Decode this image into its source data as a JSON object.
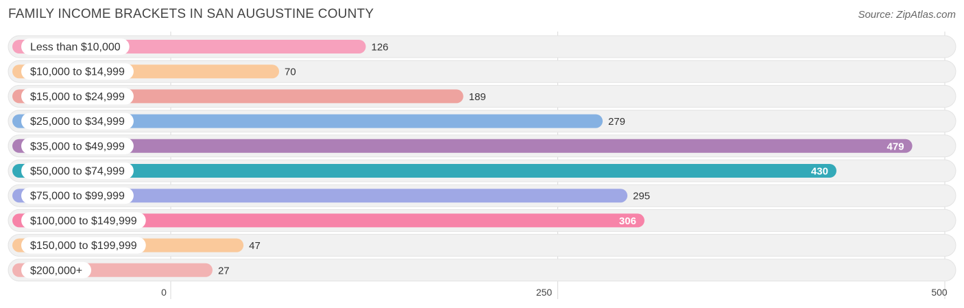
{
  "title": "FAMILY INCOME BRACKETS IN SAN AUGUSTINE COUNTY",
  "source": "Source: ZipAtlas.com",
  "chart_data": {
    "type": "bar",
    "orientation": "horizontal",
    "title": "FAMILY INCOME BRACKETS IN SAN AUGUSTINE COUNTY",
    "categories": [
      "Less than $10,000",
      "$10,000 to $14,999",
      "$15,000 to $24,999",
      "$25,000 to $34,999",
      "$35,000 to $49,999",
      "$50,000 to $74,999",
      "$75,000 to $99,999",
      "$100,000 to $149,999",
      "$150,000 to $199,999",
      "$200,000+"
    ],
    "values": [
      126,
      70,
      189,
      279,
      479,
      430,
      295,
      306,
      47,
      27
    ],
    "colors": [
      "#f7a1bd",
      "#fac99b",
      "#eea39f",
      "#85b1e2",
      "#ad7fb6",
      "#33a9b8",
      "#9fa8e5",
      "#f783a8",
      "#fac99b",
      "#f2b3b3"
    ],
    "xlim": [
      0,
      500
    ],
    "xticks": [
      0,
      250,
      500
    ],
    "grid": true,
    "legend": "none"
  }
}
